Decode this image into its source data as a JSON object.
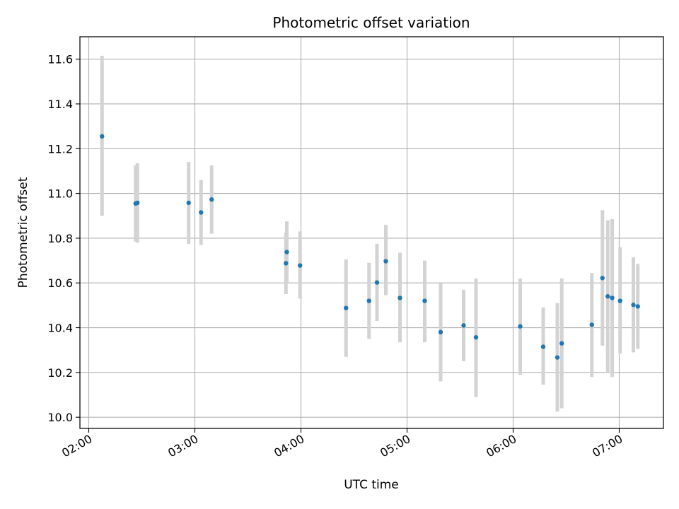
{
  "chart_data": {
    "type": "scatter",
    "title": "Photometric offset variation",
    "xlabel": "UTC time",
    "ylabel": "Photometric offset",
    "x_unit": "hours UTC",
    "xlim": [
      "01:55",
      "07:25"
    ],
    "ylim": [
      9.95,
      11.7
    ],
    "x_ticks": [
      "02:00",
      "03:00",
      "04:00",
      "05:00",
      "06:00",
      "07:00"
    ],
    "y_ticks": [
      "10.0",
      "10.2",
      "10.4",
      "10.6",
      "10.8",
      "11.0",
      "11.2",
      "11.4",
      "11.6"
    ],
    "grid": true,
    "legend": "none",
    "colors": {
      "marker": "#1f77b4",
      "errorbar": "#d3d3d3",
      "grid": "#b0b0b0"
    },
    "points": [
      {
        "time": "02:07:30",
        "y": 11.255,
        "ylo": 10.9,
        "yhi": 11.615
      },
      {
        "time": "02:26:30",
        "y": 10.955,
        "ylo": 10.785,
        "yhi": 11.125
      },
      {
        "time": "02:27:30",
        "y": 10.958,
        "ylo": 10.78,
        "yhi": 11.135
      },
      {
        "time": "02:56:30",
        "y": 10.958,
        "ylo": 10.775,
        "yhi": 11.14
      },
      {
        "time": "03:03:30",
        "y": 10.915,
        "ylo": 10.77,
        "yhi": 11.06
      },
      {
        "time": "03:09:30",
        "y": 10.973,
        "ylo": 10.82,
        "yhi": 11.125
      },
      {
        "time": "03:51:30",
        "y": 10.688,
        "ylo": 10.55,
        "yhi": 10.825
      },
      {
        "time": "03:52:00",
        "y": 10.738,
        "ylo": 10.6,
        "yhi": 10.875
      },
      {
        "time": "03:59:30",
        "y": 10.678,
        "ylo": 10.53,
        "yhi": 10.83
      },
      {
        "time": "04:25:30",
        "y": 10.488,
        "ylo": 10.27,
        "yhi": 10.705
      },
      {
        "time": "04:38:30",
        "y": 10.52,
        "ylo": 10.35,
        "yhi": 10.69
      },
      {
        "time": "04:43:00",
        "y": 10.602,
        "ylo": 10.43,
        "yhi": 10.775
      },
      {
        "time": "04:48:00",
        "y": 10.697,
        "ylo": 10.545,
        "yhi": 10.86
      },
      {
        "time": "04:56:00",
        "y": 10.533,
        "ylo": 10.335,
        "yhi": 10.735
      },
      {
        "time": "05:10:00",
        "y": 10.52,
        "ylo": 10.335,
        "yhi": 10.7
      },
      {
        "time": "05:19:00",
        "y": 10.38,
        "ylo": 10.16,
        "yhi": 10.6
      },
      {
        "time": "05:32:00",
        "y": 10.41,
        "ylo": 10.25,
        "yhi": 10.57
      },
      {
        "time": "05:39:00",
        "y": 10.357,
        "ylo": 10.09,
        "yhi": 10.62
      },
      {
        "time": "06:04:00",
        "y": 10.406,
        "ylo": 10.19,
        "yhi": 10.62
      },
      {
        "time": "06:17:00",
        "y": 10.315,
        "ylo": 10.145,
        "yhi": 10.49
      },
      {
        "time": "06:25:00",
        "y": 10.267,
        "ylo": 10.025,
        "yhi": 10.51
      },
      {
        "time": "06:27:30",
        "y": 10.33,
        "ylo": 10.04,
        "yhi": 10.62
      },
      {
        "time": "06:44:30",
        "y": 10.413,
        "ylo": 10.18,
        "yhi": 10.645
      },
      {
        "time": "06:50:30",
        "y": 10.622,
        "ylo": 10.32,
        "yhi": 10.925
      },
      {
        "time": "06:53:30",
        "y": 10.54,
        "ylo": 10.2,
        "yhi": 10.88
      },
      {
        "time": "06:56:00",
        "y": 10.533,
        "ylo": 10.18,
        "yhi": 10.885
      },
      {
        "time": "07:00:30",
        "y": 10.52,
        "ylo": 10.285,
        "yhi": 10.76
      },
      {
        "time": "07:08:00",
        "y": 10.502,
        "ylo": 10.29,
        "yhi": 10.715
      },
      {
        "time": "07:10:30",
        "y": 10.495,
        "ylo": 10.305,
        "yhi": 10.685
      }
    ]
  }
}
